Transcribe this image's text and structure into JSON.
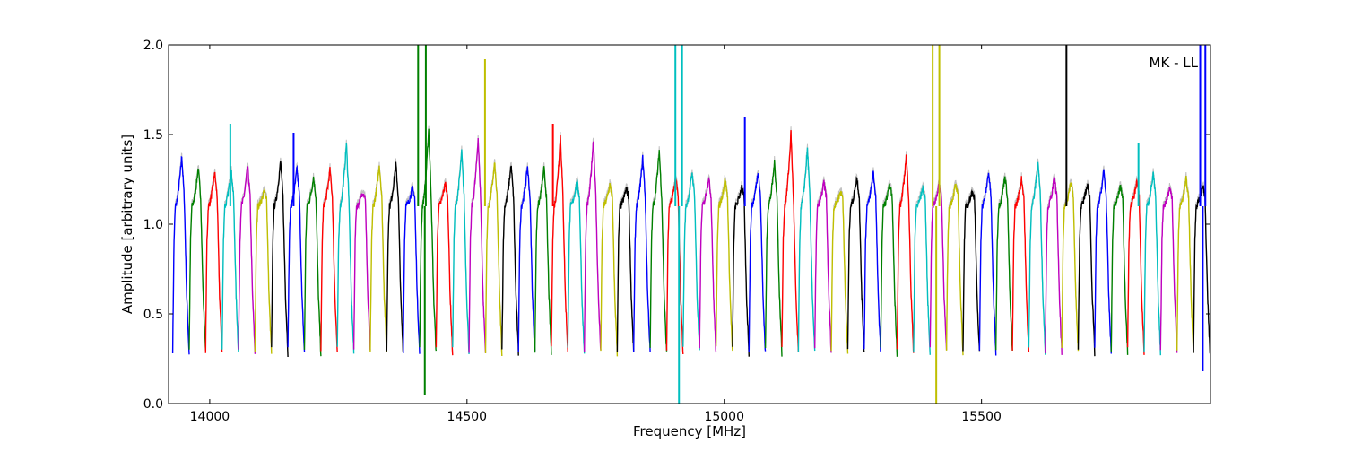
{
  "chart_data": {
    "type": "line",
    "title": "",
    "xlabel": "Frequency [MHz]",
    "ylabel": "Amplitude [arbitrary units]",
    "annotation": "MK - LL",
    "xlim": [
      13920,
      15945
    ],
    "ylim": [
      0.0,
      2.0
    ],
    "x_ticks": [
      14000,
      14500,
      15000,
      15500
    ],
    "x_tick_labels": [
      "14000",
      "14500",
      "15000",
      "15500"
    ],
    "y_ticks": [
      0.0,
      0.5,
      1.0,
      1.5,
      2.0
    ],
    "y_tick_labels": [
      "0.0",
      "0.5",
      "1.0",
      "1.5",
      "2.0"
    ],
    "grid": false,
    "legend": "none",
    "palette": [
      "#0000ff",
      "#008000",
      "#ff0000",
      "#00bfbf",
      "#bf00bf",
      "#bfbf00",
      "#000000"
    ],
    "channel_start": 13928,
    "channel_width": 32,
    "channel_count": 63,
    "background_trace_color": "#c0c0c0",
    "channel_peaks": [
      1.38,
      1.31,
      1.29,
      1.3,
      1.32,
      1.18,
      1.35,
      1.31,
      1.26,
      1.3,
      1.45,
      1.18,
      1.33,
      1.34,
      1.2,
      1.53,
      1.23,
      1.4,
      1.48,
      1.34,
      1.33,
      1.32,
      1.31,
      1.49,
      1.24,
      1.47,
      1.22,
      1.2,
      1.37,
      1.41,
      1.26,
      1.29,
      1.26,
      1.25,
      1.21,
      1.3,
      1.34,
      1.51,
      1.42,
      1.23,
      1.18,
      1.26,
      1.29,
      1.22,
      1.38,
      1.2,
      1.23,
      1.22,
      1.18,
      1.29,
      1.27,
      1.25,
      1.35,
      1.26,
      1.24,
      1.22,
      1.3,
      1.21,
      1.24,
      1.28,
      1.2,
      1.25,
      1.22
    ],
    "spikes": [
      {
        "x": 14163,
        "y": 1.51,
        "color": "#0000ff"
      },
      {
        "x": 14040,
        "y": 1.56,
        "color": "#00bfbf"
      },
      {
        "x": 14405,
        "y": 2.0,
        "color": "#008000"
      },
      {
        "x": 14420,
        "y": 2.0,
        "color": "#008000"
      },
      {
        "x": 14535,
        "y": 1.92,
        "color": "#bfbf00"
      },
      {
        "x": 14667,
        "y": 1.56,
        "color": "#ff0000"
      },
      {
        "x": 14905,
        "y": 2.0,
        "color": "#00bfbf"
      },
      {
        "x": 14918,
        "y": 2.0,
        "color": "#00bfbf"
      },
      {
        "x": 15040,
        "y": 1.6,
        "color": "#0000ff"
      },
      {
        "x": 15405,
        "y": 2.0,
        "color": "#bfbf00"
      },
      {
        "x": 15418,
        "y": 2.0,
        "color": "#bfbf00"
      },
      {
        "x": 15665,
        "y": 2.0,
        "color": "#000000"
      },
      {
        "x": 15805,
        "y": 1.45,
        "color": "#00bfbf"
      },
      {
        "x": 15925,
        "y": 2.0,
        "color": "#0000ff"
      },
      {
        "x": 15935,
        "y": 2.0,
        "color": "#0000ff"
      }
    ],
    "dips": [
      {
        "x": 14418,
        "y": 0.05,
        "color": "#008000"
      },
      {
        "x": 14912,
        "y": 0.0,
        "color": "#00bfbf"
      },
      {
        "x": 15412,
        "y": 0.0,
        "color": "#bfbf00"
      },
      {
        "x": 15930,
        "y": 0.18,
        "color": "#0000ff"
      }
    ]
  }
}
